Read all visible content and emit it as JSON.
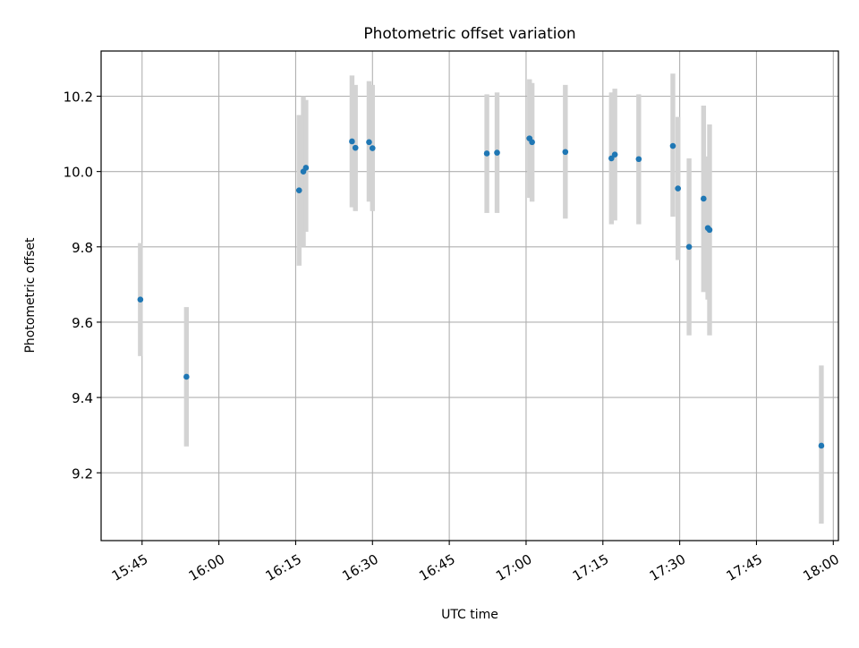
{
  "chart_data": {
    "type": "scatter",
    "title": "Photometric offset variation",
    "xlabel": "UTC time",
    "ylabel": "Photometric offset",
    "grid": true,
    "legend": "none",
    "xlim": [
      "15:37",
      "18:01"
    ],
    "ylim": [
      9.02,
      10.32
    ],
    "xticks": [
      "15:45",
      "16:00",
      "16:15",
      "16:30",
      "16:45",
      "17:00",
      "17:15",
      "17:30",
      "17:45",
      "18:00"
    ],
    "yticks": [
      "9.2",
      "9.4",
      "9.6",
      "9.8",
      "10.0",
      "10.2"
    ],
    "colors": {
      "marker": "#1f77b4",
      "errorbar": "#d3d3d3",
      "grid": "#b0b0b0"
    },
    "series": [
      {
        "points": [
          {
            "x": "15:44:40",
            "y": 9.66,
            "ylow": 9.51,
            "yhigh": 9.81
          },
          {
            "x": "15:53:40",
            "y": 9.455,
            "ylow": 9.27,
            "yhigh": 9.64
          },
          {
            "x": "16:15:40",
            "y": 9.95,
            "ylow": 9.75,
            "yhigh": 10.15
          },
          {
            "x": "16:16:30",
            "y": 10.0,
            "ylow": 9.8,
            "yhigh": 10.2
          },
          {
            "x": "16:17:00",
            "y": 10.01,
            "ylow": 9.84,
            "yhigh": 10.19
          },
          {
            "x": "16:26:00",
            "y": 10.08,
            "ylow": 9.905,
            "yhigh": 10.255
          },
          {
            "x": "16:26:40",
            "y": 10.063,
            "ylow": 9.895,
            "yhigh": 10.23
          },
          {
            "x": "16:29:20",
            "y": 10.078,
            "ylow": 9.92,
            "yhigh": 10.24
          },
          {
            "x": "16:30:00",
            "y": 10.062,
            "ylow": 9.895,
            "yhigh": 10.23
          },
          {
            "x": "16:52:20",
            "y": 10.048,
            "ylow": 9.89,
            "yhigh": 10.205
          },
          {
            "x": "16:54:20",
            "y": 10.05,
            "ylow": 9.89,
            "yhigh": 10.21
          },
          {
            "x": "17:00:40",
            "y": 10.088,
            "ylow": 9.93,
            "yhigh": 10.245
          },
          {
            "x": "17:01:10",
            "y": 10.078,
            "ylow": 9.92,
            "yhigh": 10.235
          },
          {
            "x": "17:07:40",
            "y": 10.052,
            "ylow": 9.875,
            "yhigh": 10.23
          },
          {
            "x": "17:16:40",
            "y": 10.035,
            "ylow": 9.86,
            "yhigh": 10.21
          },
          {
            "x": "17:17:20",
            "y": 10.045,
            "ylow": 9.87,
            "yhigh": 10.22
          },
          {
            "x": "17:22:00",
            "y": 10.033,
            "ylow": 9.86,
            "yhigh": 10.205
          },
          {
            "x": "17:28:40",
            "y": 10.068,
            "ylow": 9.88,
            "yhigh": 10.26
          },
          {
            "x": "17:29:40",
            "y": 9.955,
            "ylow": 9.765,
            "yhigh": 10.145
          },
          {
            "x": "17:31:50",
            "y": 9.8,
            "ylow": 9.565,
            "yhigh": 10.035
          },
          {
            "x": "17:34:40",
            "y": 9.928,
            "ylow": 9.68,
            "yhigh": 10.175
          },
          {
            "x": "17:35:30",
            "y": 9.85,
            "ylow": 9.66,
            "yhigh": 10.04
          },
          {
            "x": "17:35:50",
            "y": 9.845,
            "ylow": 9.565,
            "yhigh": 10.125
          },
          {
            "x": "17:57:40",
            "y": 9.272,
            "ylow": 9.065,
            "yhigh": 9.485
          }
        ]
      }
    ]
  }
}
